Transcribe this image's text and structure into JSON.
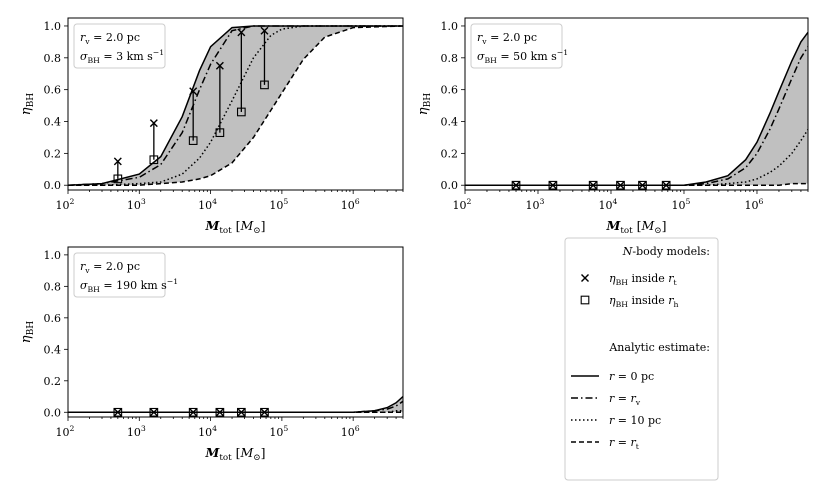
{
  "chart_data": [
    {
      "type": "line",
      "panel": "top-left",
      "annotation": [
        "r_v = 2.0 pc",
        "σ_BH = 3 km s^-1"
      ],
      "annotation_rich": [
        {
          "parts": [
            [
              "r",
              "i"
            ],
            [
              "v",
              "sub"
            ],
            [
              " = 2.0 pc",
              ""
            ]
          ]
        },
        {
          "parts": [
            [
              "σ",
              "i"
            ],
            [
              "BH",
              "sub"
            ],
            [
              " = 3 km s",
              ""
            ],
            [
              "−1",
              "sup"
            ]
          ]
        }
      ],
      "xlabel": "M_tot [M_⊙]",
      "ylabel": "η_BH",
      "xscale": "log",
      "xlim": [
        100,
        5000000
      ],
      "ylim": [
        -0.03,
        1.05
      ],
      "x_ticks": [
        "10^2",
        "10^3",
        "10^4",
        "10^5",
        "10^6"
      ],
      "y_ticks": [
        "0.0",
        "0.2",
        "0.4",
        "0.6",
        "0.8",
        "1.0"
      ],
      "x": [
        100,
        300,
        1000,
        2000,
        4000,
        7000,
        10000,
        20000,
        40000,
        70000,
        100000,
        200000,
        400000,
        1000000,
        5000000
      ],
      "series": [
        {
          "style": "solid",
          "values": [
            0.0,
            0.01,
            0.07,
            0.18,
            0.43,
            0.72,
            0.87,
            0.99,
            1.0,
            1.0,
            1.0,
            1.0,
            1.0,
            1.0,
            1.0
          ]
        },
        {
          "style": "dashdot",
          "values": [
            0.0,
            0.01,
            0.05,
            0.13,
            0.33,
            0.6,
            0.76,
            0.97,
            1.0,
            1.0,
            1.0,
            1.0,
            1.0,
            1.0,
            1.0
          ]
        },
        {
          "style": "dotted",
          "values": [
            0.0,
            0.0,
            0.01,
            0.02,
            0.07,
            0.17,
            0.27,
            0.53,
            0.8,
            0.94,
            0.98,
            1.0,
            1.0,
            1.0,
            1.0
          ]
        },
        {
          "style": "dashed",
          "values": [
            0.0,
            0.0,
            0.0,
            0.01,
            0.02,
            0.04,
            0.06,
            0.14,
            0.3,
            0.47,
            0.58,
            0.79,
            0.93,
            0.99,
            1.0
          ]
        }
      ],
      "fill_between": [
        "solid",
        "dashed"
      ],
      "nbody": {
        "x": [
          500,
          1600,
          5700,
          13500,
          27000,
          57000
        ],
        "inside_rt": [
          0.15,
          0.39,
          0.59,
          0.75,
          0.96,
          0.97
        ],
        "inside_rh": [
          0.04,
          0.16,
          0.28,
          0.33,
          0.46,
          0.63
        ]
      }
    },
    {
      "type": "line",
      "panel": "top-right",
      "annotation": [
        "r_v = 2.0 pc",
        "σ_BH = 50 km s^-1"
      ],
      "annotation_rich": [
        {
          "parts": [
            [
              "r",
              "i"
            ],
            [
              "v",
              "sub"
            ],
            [
              " = 2.0 pc",
              ""
            ]
          ]
        },
        {
          "parts": [
            [
              "σ",
              "i"
            ],
            [
              "BH",
              "sub"
            ],
            [
              " = 50 km s",
              ""
            ],
            [
              "−1",
              "sup"
            ]
          ]
        }
      ],
      "xlabel": "M_tot [M_⊙]",
      "ylabel": "η_BH",
      "xscale": "log",
      "xlim": [
        100,
        5000000
      ],
      "ylim": [
        -0.03,
        1.05
      ],
      "x_ticks": [
        "10^2",
        "10^3",
        "10^4",
        "10^5",
        "10^6"
      ],
      "y_ticks": [
        "0.0",
        "0.2",
        "0.4",
        "0.6",
        "0.8",
        "1.0"
      ],
      "x": [
        100,
        10000,
        50000,
        100000,
        200000,
        400000,
        700000,
        1000000,
        1500000,
        2000000,
        3000000,
        4000000,
        5000000
      ],
      "series": [
        {
          "style": "solid",
          "values": [
            0.0,
            0.0,
            0.0,
            0.0,
            0.02,
            0.06,
            0.16,
            0.27,
            0.45,
            0.59,
            0.78,
            0.9,
            0.96
          ]
        },
        {
          "style": "dashdot",
          "values": [
            0.0,
            0.0,
            0.0,
            0.0,
            0.01,
            0.04,
            0.11,
            0.2,
            0.35,
            0.48,
            0.67,
            0.8,
            0.87
          ]
        },
        {
          "style": "dotted",
          "values": [
            0.0,
            0.0,
            0.0,
            0.0,
            0.0,
            0.01,
            0.02,
            0.04,
            0.08,
            0.12,
            0.2,
            0.28,
            0.35
          ]
        },
        {
          "style": "dashed",
          "values": [
            0.0,
            0.0,
            0.0,
            0.0,
            0.0,
            0.0,
            0.0,
            0.0,
            0.0,
            0.0,
            0.01,
            0.01,
            0.01
          ]
        }
      ],
      "fill_between": [
        "solid",
        "dashed"
      ],
      "nbody": {
        "x": [
          500,
          1600,
          5700,
          13500,
          27000,
          57000
        ],
        "inside_rt": [
          0.0,
          0.0,
          0.0,
          0.0,
          0.0,
          0.0
        ],
        "inside_rh": [
          0.0,
          0.0,
          0.0,
          0.0,
          0.0,
          0.0
        ]
      }
    },
    {
      "type": "line",
      "panel": "bottom-left",
      "annotation": [
        "r_v = 2.0 pc",
        "σ_BH = 190 km s^-1"
      ],
      "annotation_rich": [
        {
          "parts": [
            [
              "r",
              "i"
            ],
            [
              "v",
              "sub"
            ],
            [
              " = 2.0 pc",
              ""
            ]
          ]
        },
        {
          "parts": [
            [
              "σ",
              "i"
            ],
            [
              "BH",
              "sub"
            ],
            [
              " = 190 km s",
              ""
            ],
            [
              "−1",
              "sup"
            ]
          ]
        }
      ],
      "xlabel": "M_tot [M_⊙]",
      "ylabel": "η_BH",
      "xscale": "log",
      "xlim": [
        100,
        5000000
      ],
      "ylim": [
        -0.03,
        1.05
      ],
      "x_ticks": [
        "10^2",
        "10^3",
        "10^4",
        "10^5",
        "10^6"
      ],
      "y_ticks": [
        "0.0",
        "0.2",
        "0.4",
        "0.6",
        "0.8",
        "1.0"
      ],
      "x": [
        100,
        100000,
        1000000,
        2000000,
        3000000,
        4000000,
        5000000
      ],
      "series": [
        {
          "style": "solid",
          "values": [
            0.0,
            0.0,
            0.0,
            0.01,
            0.03,
            0.06,
            0.1
          ]
        },
        {
          "style": "dashdot",
          "values": [
            0.0,
            0.0,
            0.0,
            0.01,
            0.02,
            0.04,
            0.07
          ]
        },
        {
          "style": "dotted",
          "values": [
            0.0,
            0.0,
            0.0,
            0.0,
            0.0,
            0.01,
            0.01
          ]
        },
        {
          "style": "dashed",
          "values": [
            0.0,
            0.0,
            0.0,
            0.0,
            0.0,
            0.0,
            0.0
          ]
        }
      ],
      "fill_between": [
        "solid",
        "dashed"
      ],
      "nbody": {
        "x": [
          500,
          1600,
          5700,
          13500,
          27000,
          57000
        ],
        "inside_rt": [
          0.0,
          0.0,
          0.0,
          0.0,
          0.0,
          0.0
        ],
        "inside_rh": [
          0.0,
          0.0,
          0.0,
          0.0,
          0.0,
          0.0
        ]
      }
    }
  ],
  "legend": {
    "placement": "bottom-right",
    "heading_nbody": "N-body models:",
    "heading_nbody_rich": [
      [
        "N",
        "i"
      ],
      [
        "-body models:",
        ""
      ]
    ],
    "heading_analytic": "Analytic estimate:",
    "entries": [
      {
        "marker": "x",
        "label": "η_BH inside r_t",
        "rich": [
          [
            "η",
            "i"
          ],
          [
            "BH",
            "sub"
          ],
          [
            " inside ",
            ""
          ],
          [
            "r",
            "i"
          ],
          [
            "t",
            "sub"
          ]
        ]
      },
      {
        "marker": "square",
        "label": "η_BH inside r_h",
        "rich": [
          [
            "η",
            "i"
          ],
          [
            "BH",
            "sub"
          ],
          [
            " inside ",
            ""
          ],
          [
            "r",
            "i"
          ],
          [
            "h",
            "sub"
          ]
        ]
      },
      {
        "line": "solid",
        "label": "r = 0 pc",
        "rich": [
          [
            "r",
            "i"
          ],
          [
            " = 0 pc",
            ""
          ]
        ]
      },
      {
        "line": "dashdot",
        "label": "r = r_v",
        "rich": [
          [
            "r",
            "i"
          ],
          [
            " = ",
            ""
          ],
          [
            "r",
            "i"
          ],
          [
            "v",
            "sub"
          ]
        ]
      },
      {
        "line": "dotted",
        "label": "r = 10 pc",
        "rich": [
          [
            "r",
            "i"
          ],
          [
            " = 10 pc",
            ""
          ]
        ]
      },
      {
        "line": "dashed",
        "label": "r = r_t",
        "rich": [
          [
            "r",
            "i"
          ],
          [
            " = ",
            ""
          ],
          [
            "r",
            "i"
          ],
          [
            "t",
            "sub"
          ]
        ]
      }
    ]
  },
  "colors": {
    "fill": "#c0c0c0",
    "line": "#000000",
    "box_border": "#cccccc"
  }
}
